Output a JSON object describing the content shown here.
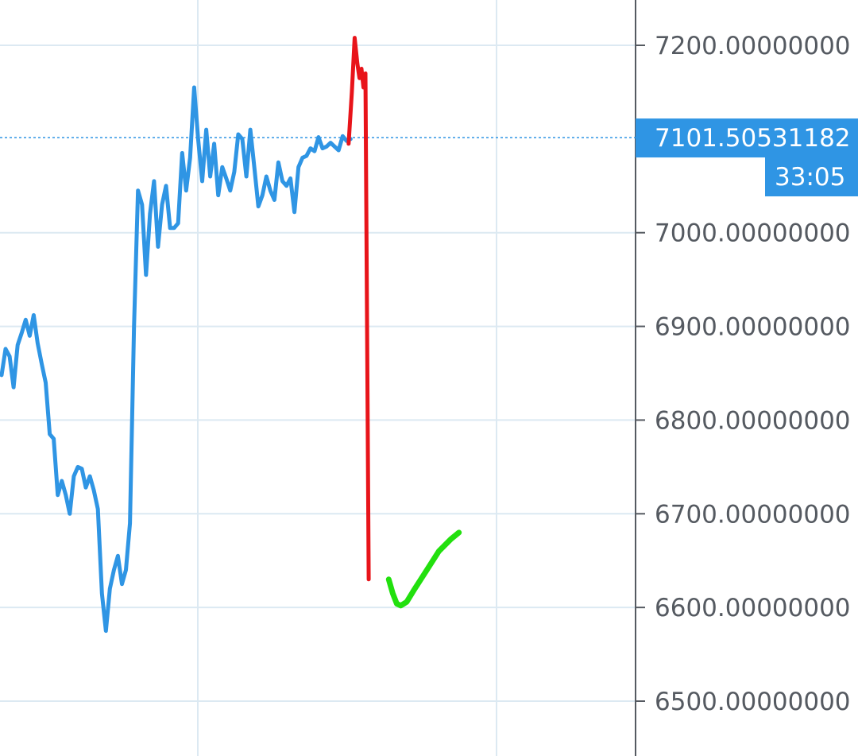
{
  "chart_data": {
    "type": "line",
    "ylim": [
      6440,
      7250
    ],
    "y_ticks": [
      {
        "value": 7200,
        "label": "7200.00000000"
      },
      {
        "value": 7000,
        "label": "7000.00000000"
      },
      {
        "value": 6900,
        "label": "6900.00000000"
      },
      {
        "value": 6800,
        "label": "6800.00000000"
      },
      {
        "value": 6700,
        "label": "6700.00000000"
      },
      {
        "value": 6600,
        "label": "6600.00000000"
      },
      {
        "value": 6500,
        "label": "6500.00000000"
      }
    ],
    "current_price": {
      "value": 7101.50531182,
      "label": "7101.50531182",
      "countdown": "33:05"
    },
    "grid": true,
    "series": [
      {
        "color": "#2f95e4",
        "points": [
          [
            0,
            6848
          ],
          [
            1,
            6876
          ],
          [
            2,
            6868
          ],
          [
            3,
            6835
          ],
          [
            4,
            6880
          ],
          [
            5,
            6893
          ],
          [
            6,
            6907
          ],
          [
            7,
            6890
          ],
          [
            8,
            6912
          ],
          [
            9,
            6882
          ],
          [
            10,
            6860
          ],
          [
            11,
            6840
          ],
          [
            12,
            6785
          ],
          [
            13,
            6780
          ],
          [
            14,
            6720
          ],
          [
            15,
            6735
          ],
          [
            16,
            6720
          ],
          [
            17,
            6700
          ],
          [
            18,
            6740
          ],
          [
            19,
            6750
          ],
          [
            20,
            6748
          ],
          [
            21,
            6728
          ],
          [
            22,
            6740
          ],
          [
            23,
            6725
          ],
          [
            24,
            6705
          ],
          [
            25,
            6615
          ],
          [
            26,
            6575
          ],
          [
            27,
            6620
          ],
          [
            28,
            6640
          ],
          [
            29,
            6655
          ],
          [
            30,
            6625
          ],
          [
            31,
            6640
          ],
          [
            32,
            6690
          ],
          [
            33,
            6900
          ],
          [
            34,
            7045
          ],
          [
            35,
            7030
          ],
          [
            36,
            6955
          ],
          [
            37,
            7020
          ],
          [
            38,
            7055
          ],
          [
            39,
            6985
          ],
          [
            40,
            7030
          ],
          [
            41,
            7050
          ],
          [
            42,
            7005
          ],
          [
            43,
            7005
          ],
          [
            44,
            7010
          ],
          [
            45,
            7085
          ],
          [
            46,
            7045
          ],
          [
            47,
            7080
          ],
          [
            48,
            7155
          ],
          [
            49,
            7100
          ],
          [
            50,
            7055
          ],
          [
            51,
            7110
          ],
          [
            52,
            7060
          ],
          [
            53,
            7095
          ],
          [
            54,
            7040
          ],
          [
            55,
            7070
          ],
          [
            56,
            7058
          ],
          [
            57,
            7045
          ],
          [
            58,
            7065
          ],
          [
            59,
            7105
          ],
          [
            60,
            7100
          ],
          [
            61,
            7060
          ],
          [
            62,
            7110
          ],
          [
            63,
            7070
          ],
          [
            64,
            7028
          ],
          [
            65,
            7040
          ],
          [
            66,
            7060
          ],
          [
            67,
            7045
          ],
          [
            68,
            7035
          ],
          [
            69,
            7075
          ],
          [
            70,
            7055
          ],
          [
            71,
            7050
          ],
          [
            72,
            7058
          ],
          [
            73,
            7022
          ],
          [
            74,
            7070
          ],
          [
            75,
            7080
          ],
          [
            76,
            7082
          ],
          [
            77,
            7090
          ],
          [
            78,
            7087
          ],
          [
            79,
            7102
          ],
          [
            80,
            7090
          ],
          [
            81,
            7092
          ],
          [
            82,
            7096
          ],
          [
            83,
            7092
          ],
          [
            84,
            7088
          ],
          [
            85,
            7103
          ],
          [
            86,
            7098
          ],
          [
            87,
            7100
          ]
        ]
      },
      {
        "color": "#e8141a",
        "points": [
          [
            86.5,
            7095
          ],
          [
            87.3,
            7150
          ],
          [
            88,
            7208
          ],
          [
            88.7,
            7180
          ],
          [
            89.2,
            7165
          ],
          [
            89.7,
            7175
          ],
          [
            90.2,
            7155
          ],
          [
            90.7,
            7170
          ],
          [
            91.5,
            6630
          ]
        ]
      },
      {
        "color": "#22e00e",
        "points": [
          [
            96.5,
            6630
          ],
          [
            97.5,
            6615
          ],
          [
            98.5,
            6604
          ],
          [
            99.5,
            6602
          ],
          [
            101,
            6606
          ],
          [
            103,
            6620
          ],
          [
            106,
            6640
          ],
          [
            109,
            6660
          ],
          [
            112,
            6673
          ],
          [
            114,
            6680
          ]
        ]
      }
    ]
  }
}
